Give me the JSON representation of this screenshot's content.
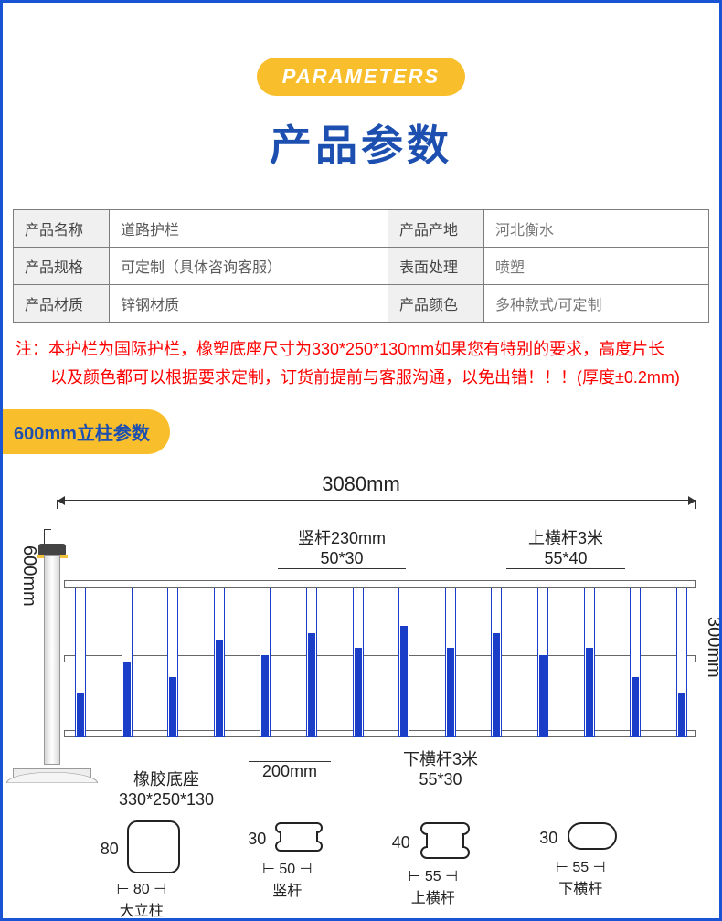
{
  "header": {
    "pill": "PARAMETERS",
    "title": "产品参数"
  },
  "params": {
    "rows": [
      {
        "l1": "产品名称",
        "v1": "道路护栏",
        "l2": "产品产地",
        "v2": "河北衡水"
      },
      {
        "l1": "产品规格",
        "v1": "可定制（具体咨询客服）",
        "l2": "表面处理",
        "v2": "喷塑"
      },
      {
        "l1": "产品材质",
        "v1": "锌钢材质",
        "l2": "产品颜色",
        "v2": "多种款式/可定制"
      }
    ]
  },
  "note": {
    "line1": "注：本护栏为国际护栏，橡塑底座尺寸为330*250*130mm如果您有特别的要求，高度片长",
    "line2": "以及颜色都可以根据要求定制，订货前提前与客服沟通，以免出错！！！(厚度±0.2mm)"
  },
  "section_tag": "600mm立柱参数",
  "diagram": {
    "total_width": "3080mm",
    "height_left": "600mm",
    "height_right": "300mm",
    "gap_below": "200mm",
    "vert_bar": {
      "label": "竖杆230mm",
      "spec": "50*30"
    },
    "top_rail": {
      "label": "上横杆3米",
      "spec": "55*40"
    },
    "bot_rail": {
      "label": "下横杆3米",
      "spec": "55*30"
    },
    "base": {
      "label": "橡胶底座",
      "spec": "330*250*130"
    },
    "bar_fill_color": "#1a3ec7",
    "bar_heights_pct": [
      30,
      50,
      40,
      65,
      55,
      70,
      60,
      75,
      60,
      70,
      55,
      60,
      40,
      30
    ]
  },
  "cross": [
    {
      "name": "大立柱",
      "w": "80",
      "h": "80",
      "shape": "roundrect"
    },
    {
      "name": "竖杆",
      "w": "50",
      "h": "30",
      "shape": "lobed"
    },
    {
      "name": "上横杆",
      "w": "55",
      "h": "40",
      "shape": "lobed"
    },
    {
      "name": "下横杆",
      "w": "55",
      "h": "30",
      "shape": "capsule"
    }
  ],
  "colors": {
    "border": "#1854d4",
    "pill_bg": "#f9be2b",
    "title": "#1c4fb0",
    "note": "#ff0000"
  }
}
